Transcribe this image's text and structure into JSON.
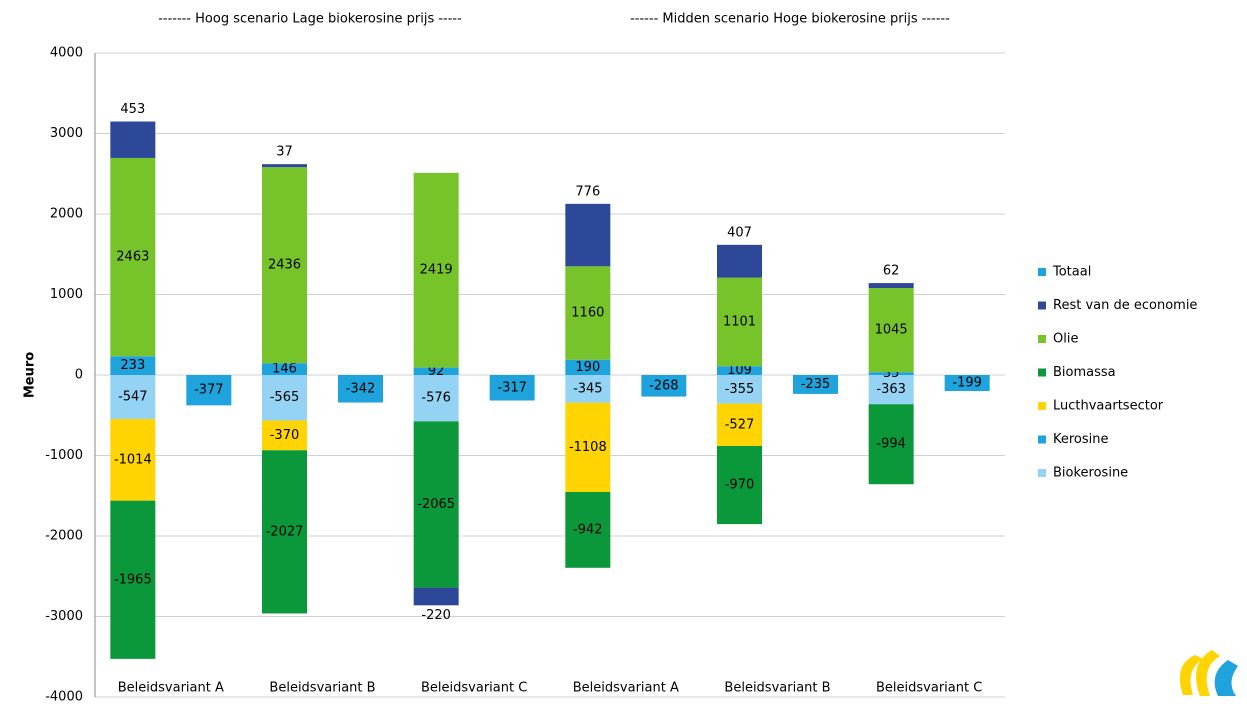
{
  "chart_data": {
    "type": "bar",
    "stacked": true,
    "annotations": [
      "------- Hoog scenario Lage biokerosine prijs -----",
      "------ Midden scenario Hoge biokerosine prijs ------"
    ],
    "y_label": "Meuro",
    "categories": [
      "Beleidsvariant A",
      "Beleidsvariant B",
      "Beleidsvariant C",
      "Beleidsvariant A",
      "Beleidsvariant B",
      "Beleidsvariant C"
    ],
    "series": [
      {
        "name": "Totaal",
        "color": "#1ea3dc",
        "values": [
          -377,
          -342,
          -317,
          -268,
          -235,
          -199
        ]
      },
      {
        "name": "Rest van de economie",
        "color": "#2e4899",
        "values": [
          453,
          37,
          -220,
          776,
          407,
          62
        ]
      },
      {
        "name": "Olie",
        "color": "#77c42a",
        "values": [
          2463,
          2436,
          2419,
          1160,
          1101,
          1045
        ]
      },
      {
        "name": "Biomassa",
        "color": "#0b983a",
        "values": [
          -1965,
          -2027,
          -2065,
          -942,
          -970,
          -994
        ]
      },
      {
        "name": "Lucthvaartsector",
        "color": "#ffd400",
        "values": [
          -1014,
          -370,
          null,
          -1108,
          -527,
          null
        ]
      },
      {
        "name": "Kerosine",
        "color": "#1ea3dc",
        "values": [
          233,
          146,
          92,
          190,
          109,
          35
        ]
      },
      {
        "name": "Biokerosine",
        "color": "#94d3f4",
        "values": [
          -547,
          -565,
          -576,
          -345,
          -355,
          -363
        ]
      }
    ],
    "ylim": [
      -4000,
      4000
    ],
    "yticks": [
      -4000,
      -3000,
      -2000,
      -1000,
      0,
      1000,
      2000,
      3000,
      4000
    ],
    "grid": true,
    "legend": "right"
  }
}
